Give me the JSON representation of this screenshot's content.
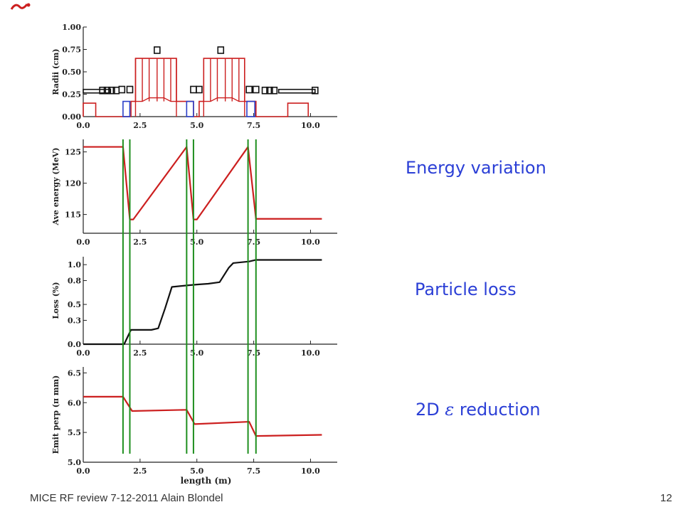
{
  "logo_icon": "logo-swoosh-icon",
  "annotations": {
    "energy": "Energy variation",
    "loss": "Particle loss",
    "emit_pre": "2D ",
    "emit_symbol": "ε",
    "emit_post": " reduction"
  },
  "footer": {
    "left": "MICE RF review  7-12-2011 Alain Blondel",
    "page": "12"
  },
  "colors": {
    "red": "#cc1f1f",
    "blue": "#2b3fc8",
    "green": "#1f8f1f",
    "black": "#111111",
    "note": "#2b3fd6"
  },
  "chart_data": [
    {
      "type": "line",
      "name": "radii",
      "ylabel": "Radii  (cm)",
      "xlabel": "",
      "xlim": [
        0,
        10.8
      ],
      "ylim": [
        0,
        1.0
      ],
      "xticks": [
        "0.0",
        "2.5",
        "5.0",
        "7.5",
        "10.0"
      ],
      "yticks": [
        "0.00",
        "0.25",
        "0.50",
        "0.75",
        "1.00"
      ],
      "red_outline": [
        [
          0,
          0
        ],
        [
          0,
          0.15
        ],
        [
          0.55,
          0.15
        ],
        [
          0.55,
          0
        ],
        [
          2.1,
          0
        ],
        [
          2.1,
          0.17
        ],
        [
          2.3,
          0.17
        ],
        [
          2.3,
          0.65
        ],
        [
          4.1,
          0.65
        ],
        [
          4.1,
          0.17
        ],
        [
          4.85,
          0.17
        ],
        [
          4.85,
          0
        ],
        [
          5.1,
          0
        ],
        [
          5.1,
          0.17
        ],
        [
          5.3,
          0.17
        ],
        [
          5.3,
          0.65
        ],
        [
          7.1,
          0.65
        ],
        [
          7.1,
          0.17
        ],
        [
          7.6,
          0.17
        ],
        [
          7.6,
          0
        ],
        [
          9.0,
          0
        ],
        [
          9.0,
          0.15
        ],
        [
          9.9,
          0.15
        ],
        [
          9.9,
          0
        ]
      ],
      "red_dividers": [
        2.6,
        2.9,
        3.25,
        3.55,
        3.85,
        5.6,
        5.9,
        6.25,
        6.55,
        6.85
      ],
      "red_inner": [
        [
          2.3,
          0.17
        ],
        [
          2.6,
          0.17
        ],
        [
          2.9,
          0.21
        ],
        [
          3.55,
          0.21
        ],
        [
          3.85,
          0.17
        ],
        [
          4.1,
          0.17
        ],
        [
          5.3,
          0.17
        ],
        [
          5.6,
          0.17
        ],
        [
          5.9,
          0.21
        ],
        [
          6.55,
          0.21
        ],
        [
          6.85,
          0.17
        ],
        [
          7.1,
          0.17
        ]
      ],
      "blue_boxes": [
        [
          1.75,
          2.05,
          0.17
        ],
        [
          4.55,
          4.85,
          0.17
        ],
        [
          7.2,
          7.55,
          0.17
        ]
      ],
      "black_boxes": [
        [
          1.7,
          0.29
        ],
        [
          2.05,
          0.29
        ],
        [
          3.25,
          0.73
        ],
        [
          4.85,
          0.29
        ],
        [
          5.1,
          0.29
        ],
        [
          6.05,
          0.73
        ],
        [
          7.3,
          0.29
        ],
        [
          7.6,
          0.29
        ],
        [
          1.25,
          0.28
        ],
        [
          1.45,
          0.28
        ],
        [
          0.85,
          0.28
        ],
        [
          1.05,
          0.28
        ],
        [
          8.0,
          0.28
        ],
        [
          8.2,
          0.28
        ],
        [
          8.4,
          0.28
        ],
        [
          10.2,
          0.28
        ]
      ],
      "black_bars": [
        [
          0,
          1.2,
          0.28
        ],
        [
          8.6,
          10.2,
          0.28
        ]
      ]
    },
    {
      "type": "line",
      "name": "energy",
      "ylabel": "Ave energy (MeV)",
      "xlabel": "",
      "xlim": [
        0,
        10.8
      ],
      "ylim": [
        112,
        127
      ],
      "xticks": [
        "0.0",
        "2.5",
        "5.0",
        "7.5",
        "10.0"
      ],
      "yticks": [
        "115",
        "120",
        "125"
      ],
      "x": [
        0,
        1.75,
        2.05,
        2.2,
        4.55,
        4.85,
        5.0,
        7.25,
        7.6,
        10.5
      ],
      "y": [
        125.8,
        125.8,
        114.2,
        114.2,
        125.8,
        114.2,
        114.2,
        125.8,
        114.3,
        114.3
      ],
      "color": "#cc1f1f"
    },
    {
      "type": "line",
      "name": "loss",
      "ylabel": "Loss    (%)",
      "xlabel": "",
      "xlim": [
        0,
        10.8
      ],
      "ylim": [
        0,
        1.1
      ],
      "xticks": [
        "0.0",
        "2.5",
        "5.0",
        "7.5",
        "10.0"
      ],
      "yticks": [
        "0.0",
        "0.3",
        "0.5",
        "0.8",
        "1.0"
      ],
      "x": [
        0,
        1.8,
        2.1,
        3.0,
        3.3,
        3.6,
        3.9,
        4.6,
        5.0,
        5.5,
        6.0,
        6.4,
        6.6,
        7.3,
        7.6,
        10.5
      ],
      "y": [
        0,
        0,
        0.18,
        0.18,
        0.2,
        0.45,
        0.72,
        0.74,
        0.75,
        0.76,
        0.78,
        0.96,
        1.02,
        1.04,
        1.06,
        1.06
      ],
      "color": "#111111"
    },
    {
      "type": "line",
      "name": "emittance",
      "ylabel": "Emit perp  (π mm)",
      "xlabel": "length    (m)",
      "xlim": [
        0,
        10.8
      ],
      "ylim": [
        5.0,
        6.6
      ],
      "xticks": [
        "0.0",
        "2.5",
        "5.0",
        "7.5",
        "10.0"
      ],
      "yticks": [
        "5.0",
        "5.5",
        "6.0",
        "6.5"
      ],
      "x": [
        0,
        1.75,
        2.15,
        4.55,
        4.9,
        7.3,
        7.6,
        10.5
      ],
      "y": [
        6.1,
        6.1,
        5.86,
        5.88,
        5.64,
        5.68,
        5.44,
        5.46
      ],
      "color": "#cc1f1f"
    }
  ],
  "green_lines_x": [
    1.75,
    2.05,
    4.55,
    4.85,
    7.25,
    7.6
  ]
}
